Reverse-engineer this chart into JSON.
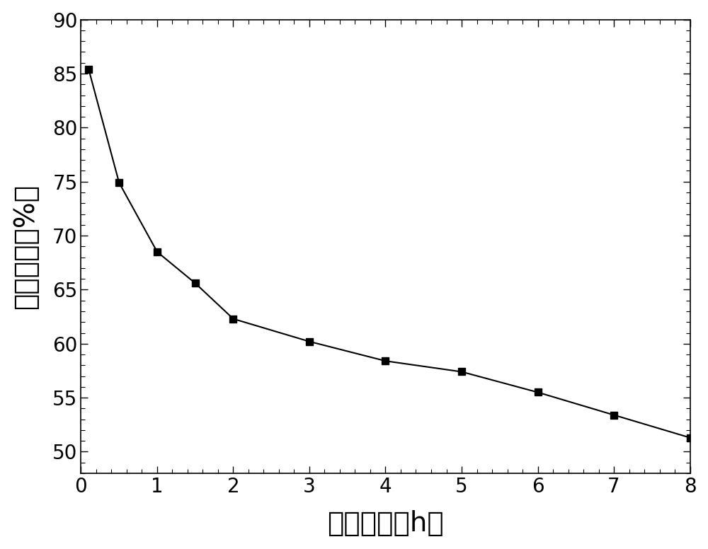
{
  "x": [
    0.1,
    0.5,
    1.0,
    1.5,
    2.0,
    3.0,
    4.0,
    5.0,
    6.0,
    7.0,
    8.0
  ],
  "y": [
    85.4,
    74.9,
    68.5,
    65.6,
    62.3,
    60.2,
    58.4,
    57.4,
    55.5,
    53.4,
    51.3
  ],
  "xlabel": "保温时间（h）",
  "ylabel": "相对酶活（%）",
  "xlim": [
    0,
    8
  ],
  "ylim": [
    48,
    90
  ],
  "yticks": [
    50,
    55,
    60,
    65,
    70,
    75,
    80,
    85,
    90
  ],
  "xticks": [
    0,
    1,
    2,
    3,
    4,
    5,
    6,
    7,
    8
  ],
  "line_color": "#000000",
  "marker": "s",
  "marker_size": 7,
  "marker_color": "#000000",
  "line_width": 1.5,
  "xlabel_fontsize": 28,
  "ylabel_fontsize": 28,
  "tick_fontsize": 20,
  "background_color": "#ffffff",
  "fig_width": 10.0,
  "fig_height": 7.76
}
